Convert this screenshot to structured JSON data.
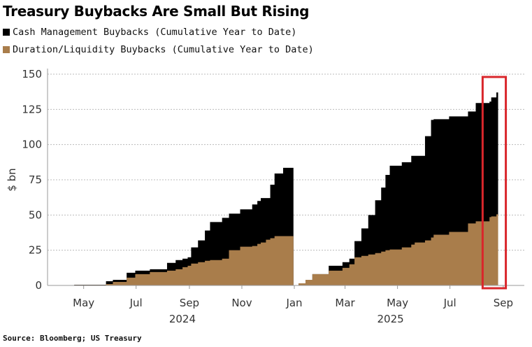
{
  "chart_data": {
    "type": "area",
    "stacked": true,
    "title": "Treasury Buybacks Are Small But Rising",
    "ylabel": "$ bn",
    "xlabel": "",
    "ylim": [
      0,
      150
    ],
    "yticks": [
      0,
      25,
      50,
      75,
      100,
      125,
      150
    ],
    "xticks": [
      {
        "label": "May",
        "date": "2024-05-01"
      },
      {
        "label": "Jul",
        "date": "2024-07-01"
      },
      {
        "label": "Sep",
        "date": "2024-09-01"
      },
      {
        "label": "Nov",
        "date": "2024-11-01"
      },
      {
        "label": "Jan",
        "date": "2025-01-01"
      },
      {
        "label": "Mar",
        "date": "2025-03-01"
      },
      {
        "label": "May",
        "date": "2025-05-01"
      },
      {
        "label": "Jul",
        "date": "2025-07-01"
      },
      {
        "label": "Sep",
        "date": "2025-09-01"
      }
    ],
    "year_labels": [
      {
        "label": "2024",
        "date": "2024-09-01"
      },
      {
        "label": "2025",
        "date": "2025-05-01"
      }
    ],
    "grid": "horizontal dotted",
    "legend_placement": "top-left",
    "colors": {
      "cash": "#000000",
      "duration": "#A97D4B",
      "highlight": "#D9262B"
    },
    "highlight_range": [
      "2025-08-08",
      "2025-09-04"
    ],
    "dates": [
      "2024-04-01",
      "2024-04-20",
      "2024-05-27",
      "2024-06-04",
      "2024-06-20",
      "2024-06-30",
      "2024-07-17",
      "2024-08-06",
      "2024-08-16",
      "2024-08-24",
      "2024-08-30",
      "2024-09-03",
      "2024-09-11",
      "2024-09-19",
      "2024-09-25",
      "2024-10-09",
      "2024-10-17",
      "2024-10-30",
      "2024-11-13",
      "2024-11-19",
      "2024-11-23",
      "2024-11-29",
      "2024-12-04",
      "2024-12-09",
      "2024-12-19",
      "2024-12-31",
      "2025-01-06",
      "2025-01-14",
      "2025-01-22",
      "2025-02-10",
      "2025-02-26",
      "2025-03-06",
      "2025-03-12",
      "2025-03-20",
      "2025-03-28",
      "2025-04-05",
      "2025-04-12",
      "2025-04-17",
      "2025-04-22",
      "2025-05-06",
      "2025-05-17",
      "2025-05-21",
      "2025-06-02",
      "2025-06-09",
      "2025-06-12",
      "2025-06-30",
      "2025-07-22",
      "2025-07-31",
      "2025-08-16",
      "2025-08-18",
      "2025-08-24",
      "2025-08-26"
    ],
    "series": [
      {
        "name": "Duration/Liquidity Buybacks (Cumulative Year to Date)",
        "values": [
          0,
          0.3,
          1,
          2.5,
          5.5,
          8,
          9.5,
          10.5,
          11.5,
          13,
          14,
          15.5,
          16.5,
          17.5,
          18,
          19,
          25,
          27.5,
          28,
          29.5,
          30.5,
          32.5,
          33.5,
          35,
          35,
          35,
          1.5,
          4,
          8,
          10.5,
          12.5,
          15,
          20,
          21,
          22,
          23,
          24,
          25,
          25.5,
          27,
          29,
          30.5,
          32,
          34,
          36,
          38,
          44,
          45.5,
          48.5,
          49,
          50.5,
          50.5
        ]
      },
      {
        "name": "Cash Management Buybacks (Cumulative Year to Date)",
        "values": [
          0,
          0.2,
          2,
          1.5,
          3.5,
          2.5,
          2,
          5.5,
          6.5,
          6,
          6,
          11.5,
          15.5,
          21.5,
          27,
          29,
          26,
          26.5,
          29.5,
          30.5,
          31.5,
          29.5,
          38,
          44.5,
          48.5,
          48.5,
          0,
          0,
          0,
          3.5,
          4,
          4,
          11.5,
          19.5,
          28,
          37.5,
          45.5,
          53.5,
          59.5,
          60.5,
          63,
          61.5,
          74,
          83.5,
          82,
          82,
          79.5,
          84,
          82,
          84.5,
          86.5,
          86.5
        ]
      }
    ]
  },
  "legend": {
    "cash_label": "Cash Management Buybacks (Cumulative Year to Date)",
    "duration_label": "Duration/Liquidity Buybacks (Cumulative Year to Date)"
  },
  "source": "Source: Bloomberg; US Treasury"
}
